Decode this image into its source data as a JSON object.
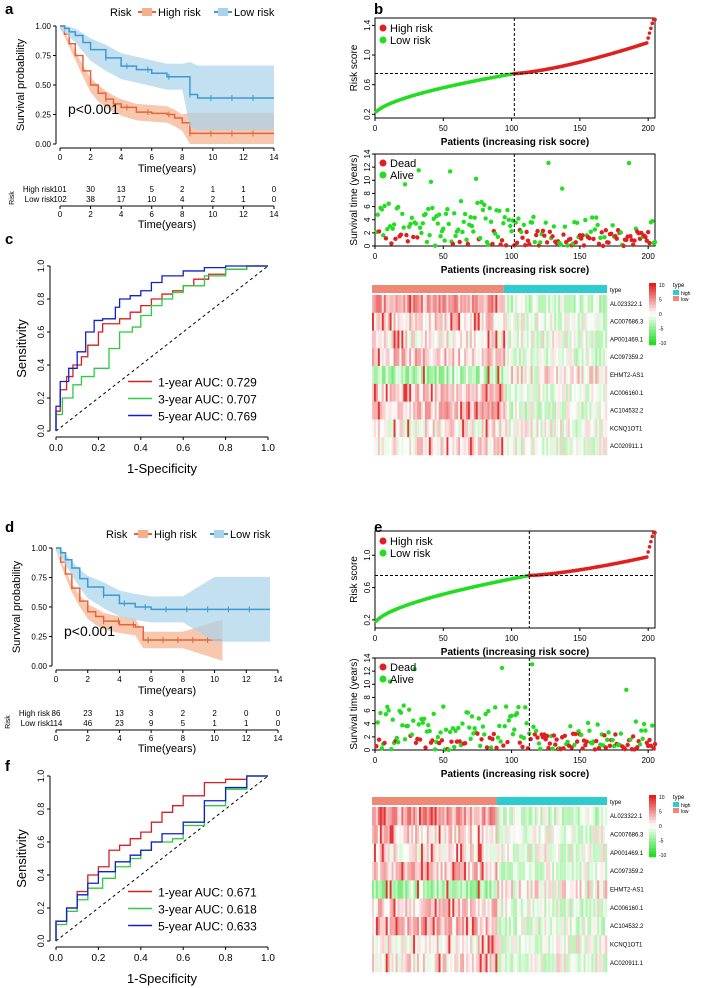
{
  "colors": {
    "high": "#E8633A",
    "low": "#3C9AD2",
    "high_band": "#F4B08A",
    "low_band": "#A9D3EA",
    "red": "#E02020",
    "green": "#22DD22",
    "roc1": "#D42020",
    "roc3": "#2ECC40",
    "roc5": "#1020C8",
    "hm_high": "#E22020",
    "hm_mid": "#FFFFFF",
    "hm_low": "#22DD22",
    "bar_high": "#2ECCD0",
    "bar_low": "#F08878"
  },
  "panels": {
    "a": {
      "label": "a",
      "legend_title": "Risk",
      "legend_high": "High risk",
      "legend_low": "Low risk",
      "ylabel": "Survival probability",
      "xlabel": "Time(years)",
      "pvalue": "p<0.001",
      "yticks": [
        "0.00",
        "0.25",
        "0.50",
        "0.75",
        "1.00"
      ],
      "xticks": [
        "0",
        "2",
        "4",
        "6",
        "8",
        "10",
        "12",
        "14"
      ],
      "risk_table": {
        "title": "Risk",
        "row_high_label": "High risk",
        "row_low_label": "Low risk",
        "high": [
          "101",
          "30",
          "13",
          "5",
          "2",
          "1",
          "1",
          "0"
        ],
        "low": [
          "102",
          "38",
          "17",
          "10",
          "4",
          "2",
          "1",
          "0"
        ],
        "xlabel": "Time(years)",
        "xticks": [
          "0",
          "2",
          "4",
          "6",
          "8",
          "10",
          "12",
          "14"
        ]
      }
    },
    "b": {
      "label": "b",
      "score": {
        "ylabel": "Risk score",
        "xlabel": "Patients (increasing risk socre)",
        "legend_high": "High risk",
        "legend_low": "Low risk",
        "yticks": [
          "0.2",
          "0.6",
          "1.0",
          "1.4"
        ],
        "xticks": [
          "0",
          "50",
          "100",
          "150",
          "200"
        ]
      },
      "surv": {
        "ylabel": "Survival time (years)",
        "xlabel": "Patients (increasing risk socre)",
        "legend_dead": "Dead",
        "legend_alive": "Alive",
        "yticks": [
          "0",
          "2",
          "4",
          "6",
          "8",
          "10",
          "12",
          "14"
        ],
        "xticks": [
          "0",
          "50",
          "100",
          "150",
          "200"
        ]
      },
      "heat": {
        "genes": [
          "AL023322.1",
          "AC007686.3",
          "AP001469.1",
          "AC097359.2",
          "EHMT2-AS1",
          "AC006160.1",
          "AC104532.2",
          "KCNQ1OT1",
          "AC020911.1"
        ],
        "legend_title": "type",
        "type_high": "high",
        "type_low": "low",
        "scale": [
          "10",
          "5",
          "0",
          "-5",
          "-10"
        ],
        "top_label": "type"
      }
    },
    "c": {
      "label": "c",
      "ylabel": "Sensitivity",
      "xlabel": "1-Specificity",
      "ticks": [
        "0.0",
        "0.2",
        "0.4",
        "0.6",
        "0.8",
        "1.0"
      ],
      "legend": [
        "1-year AUC: 0.729",
        "3-year AUC: 0.707",
        "5-year AUC: 0.769"
      ]
    },
    "d": {
      "label": "d",
      "legend_title": "Risk",
      "legend_high": "High risk",
      "legend_low": "Low risk",
      "ylabel": "Survival probability",
      "xlabel": "Time(years)",
      "pvalue": "p<0.001",
      "yticks": [
        "0.00",
        "0.25",
        "0.50",
        "0.75",
        "1.00"
      ],
      "xticks": [
        "0",
        "2",
        "4",
        "6",
        "8",
        "10",
        "12",
        "14"
      ],
      "risk_table": {
        "title": "Risk",
        "row_high_label": "High risk",
        "row_low_label": "Low risk",
        "high": [
          "86",
          "23",
          "13",
          "3",
          "2",
          "2",
          "0",
          "0"
        ],
        "low": [
          "114",
          "46",
          "23",
          "9",
          "5",
          "1",
          "1",
          "0"
        ],
        "xlabel": "Time(years)",
        "xticks": [
          "0",
          "2",
          "4",
          "6",
          "8",
          "10",
          "12",
          "14"
        ]
      }
    },
    "e": {
      "label": "e",
      "score": {
        "ylabel": "Risk score",
        "xlabel": "Patients (increasing risk socre)",
        "legend_high": "High risk",
        "legend_low": "Low risk",
        "yticks": [
          "0.2",
          "0.6",
          "1.0"
        ],
        "xticks": [
          "0",
          "50",
          "100",
          "150",
          "200"
        ]
      },
      "surv": {
        "ylabel": "Survival time (years)",
        "xlabel": "Patients (increasing risk socre)",
        "legend_dead": "Dead",
        "legend_alive": "Alive",
        "yticks": [
          "0",
          "2",
          "4",
          "6",
          "8",
          "10",
          "12",
          "14"
        ],
        "xticks": [
          "0",
          "50",
          "100",
          "150",
          "200"
        ]
      },
      "heat": {
        "genes": [
          "AL023322.1",
          "AC007686.3",
          "AP001469.1",
          "AC097359.2",
          "EHMT2-AS1",
          "AC006160.1",
          "AC104532.2",
          "KCNQ1OT1",
          "AC020911.1"
        ],
        "legend_title": "type",
        "type_high": "high",
        "type_low": "low",
        "scale": [
          "10",
          "5",
          "0",
          "-5",
          "-10"
        ],
        "top_label": "type"
      }
    },
    "f": {
      "label": "f",
      "ylabel": "Sensitivity",
      "xlabel": "1-Specificity",
      "ticks": [
        "0.0",
        "0.2",
        "0.4",
        "0.6",
        "0.8",
        "1.0"
      ],
      "legend": [
        "1-year AUC: 0.671",
        "3-year AUC: 0.618",
        "5-year AUC: 0.633"
      ]
    }
  },
  "chart_data": [
    {
      "type": "line",
      "id": "a-km",
      "title": "",
      "xlabel": "Time(years)",
      "ylabel": "Survival probability",
      "xlim": [
        0,
        14
      ],
      "ylim": [
        0,
        1
      ],
      "series": [
        {
          "name": "High risk",
          "x": [
            0,
            0.3,
            0.6,
            1,
            1.5,
            2,
            2.5,
            3,
            3.5,
            4,
            5,
            6,
            7,
            7.5,
            8,
            8.5,
            14
          ],
          "y": [
            1,
            0.93,
            0.85,
            0.75,
            0.62,
            0.5,
            0.43,
            0.38,
            0.34,
            0.31,
            0.27,
            0.26,
            0.25,
            0.22,
            0.18,
            0.09,
            0.09
          ]
        },
        {
          "name": "Low risk",
          "x": [
            0,
            0.3,
            0.6,
            1,
            1.5,
            2,
            3,
            4,
            5,
            6,
            7,
            8,
            8.5,
            9,
            14
          ],
          "y": [
            1,
            0.98,
            0.95,
            0.92,
            0.86,
            0.8,
            0.73,
            0.66,
            0.63,
            0.6,
            0.57,
            0.57,
            0.42,
            0.39,
            0.39
          ]
        }
      ]
    },
    {
      "type": "scatter",
      "id": "b-riskscore",
      "xlabel": "Patients (increasing risk socre)",
      "ylabel": "Risk score",
      "xlim": [
        0,
        205
      ],
      "ylim": [
        0.15,
        1.5
      ],
      "cutoff": 102,
      "threshold": 0.75
    },
    {
      "type": "scatter",
      "id": "b-survival",
      "xlabel": "Patients (increasing risk socre)",
      "ylabel": "Survival time (years)",
      "xlim": [
        0,
        205
      ],
      "ylim": [
        0,
        14
      ],
      "cutoff": 102
    },
    {
      "type": "heatmap",
      "id": "b-heat",
      "rows": [
        "AL023322.1",
        "AC007686.3",
        "AP001469.1",
        "AC097359.2",
        "EHMT2-AS1",
        "AC006160.1",
        "AC104532.2",
        "KCNQ1OT1",
        "AC020911.1"
      ]
    },
    {
      "type": "line",
      "id": "c-roc",
      "xlabel": "1-Specificity",
      "ylabel": "Sensitivity",
      "xlim": [
        0,
        1
      ],
      "ylim": [
        0,
        1
      ],
      "series": [
        {
          "name": "1-year AUC: 0.729",
          "x": [
            0,
            0.02,
            0.05,
            0.08,
            0.12,
            0.15,
            0.2,
            0.22,
            0.3,
            0.35,
            0.4,
            0.45,
            0.5,
            0.55,
            0.6,
            0.65,
            0.72,
            0.8,
            0.9,
            1
          ],
          "y": [
            0,
            0.12,
            0.25,
            0.33,
            0.4,
            0.45,
            0.52,
            0.6,
            0.65,
            0.68,
            0.72,
            0.76,
            0.8,
            0.83,
            0.85,
            0.88,
            0.92,
            0.95,
            0.98,
            1
          ]
        },
        {
          "name": "3-year AUC: 0.707",
          "x": [
            0,
            0.03,
            0.08,
            0.12,
            0.18,
            0.25,
            0.3,
            0.36,
            0.4,
            0.45,
            0.5,
            0.55,
            0.6,
            0.7,
            0.8,
            0.9,
            1
          ],
          "y": [
            0,
            0.1,
            0.2,
            0.28,
            0.33,
            0.38,
            0.5,
            0.6,
            0.63,
            0.7,
            0.76,
            0.8,
            0.84,
            0.88,
            0.94,
            0.98,
            1
          ]
        },
        {
          "name": "5-year AUC: 0.769",
          "x": [
            0,
            0.02,
            0.06,
            0.1,
            0.14,
            0.18,
            0.22,
            0.28,
            0.3,
            0.35,
            0.4,
            0.45,
            0.5,
            0.6,
            0.7,
            0.8,
            0.9,
            1
          ],
          "y": [
            0,
            0.15,
            0.3,
            0.38,
            0.48,
            0.6,
            0.67,
            0.68,
            0.75,
            0.8,
            0.82,
            0.85,
            0.9,
            0.94,
            0.97,
            0.99,
            1,
            1
          ]
        }
      ]
    },
    {
      "type": "line",
      "id": "d-km",
      "xlabel": "Time(years)",
      "ylabel": "Survival probability",
      "xlim": [
        0,
        14
      ],
      "ylim": [
        0,
        1
      ],
      "series": [
        {
          "name": "High risk",
          "x": [
            0,
            0.3,
            0.6,
            1,
            1.5,
            2,
            2.5,
            3,
            4,
            5,
            5.5,
            6,
            8,
            10.5
          ],
          "y": [
            1,
            0.88,
            0.78,
            0.66,
            0.55,
            0.46,
            0.42,
            0.38,
            0.35,
            0.33,
            0.22,
            0.22,
            0.22,
            0.22
          ]
        },
        {
          "name": "Low risk",
          "x": [
            0,
            0.3,
            0.6,
            1,
            1.5,
            2,
            3,
            4,
            5,
            6,
            8,
            10,
            13.5
          ],
          "y": [
            1,
            0.96,
            0.9,
            0.83,
            0.74,
            0.67,
            0.6,
            0.53,
            0.5,
            0.48,
            0.48,
            0.48,
            0.48
          ]
        }
      ]
    },
    {
      "type": "scatter",
      "id": "e-riskscore",
      "xlabel": "Patients (increasing risk socre)",
      "ylabel": "Risk score",
      "xlim": [
        0,
        205
      ],
      "ylim": [
        0.1,
        1.3
      ],
      "cutoff": 113,
      "threshold": 0.75
    },
    {
      "type": "scatter",
      "id": "e-survival",
      "xlabel": "Patients (increasing risk socre)",
      "ylabel": "Survival time (years)",
      "xlim": [
        0,
        205
      ],
      "ylim": [
        0,
        14
      ],
      "cutoff": 113
    },
    {
      "type": "heatmap",
      "id": "e-heat",
      "rows": [
        "AL023322.1",
        "AC007686.3",
        "AP001469.1",
        "AC097359.2",
        "EHMT2-AS1",
        "AC006160.1",
        "AC104532.2",
        "KCNQ1OT1",
        "AC020911.1"
      ]
    },
    {
      "type": "line",
      "id": "f-roc",
      "xlabel": "1-Specificity",
      "ylabel": "Sensitivity",
      "xlim": [
        0,
        1
      ],
      "ylim": [
        0,
        1
      ],
      "series": [
        {
          "name": "1-year AUC: 0.671",
          "x": [
            0,
            0.05,
            0.1,
            0.15,
            0.2,
            0.25,
            0.3,
            0.35,
            0.4,
            0.45,
            0.5,
            0.55,
            0.6,
            0.7,
            0.8,
            0.9,
            1
          ],
          "y": [
            0,
            0.12,
            0.2,
            0.3,
            0.4,
            0.45,
            0.55,
            0.58,
            0.62,
            0.66,
            0.72,
            0.78,
            0.82,
            0.88,
            0.96,
            0.98,
            1
          ]
        },
        {
          "name": "3-year AUC: 0.618",
          "x": [
            0,
            0.05,
            0.1,
            0.15,
            0.22,
            0.28,
            0.35,
            0.4,
            0.45,
            0.55,
            0.6,
            0.7,
            0.8,
            0.9,
            1
          ],
          "y": [
            0,
            0.1,
            0.18,
            0.25,
            0.32,
            0.38,
            0.45,
            0.5,
            0.55,
            0.6,
            0.62,
            0.7,
            0.82,
            0.92,
            1
          ]
        },
        {
          "name": "5-year AUC: 0.633",
          "x": [
            0,
            0.05,
            0.1,
            0.15,
            0.2,
            0.28,
            0.35,
            0.4,
            0.45,
            0.5,
            0.6,
            0.7,
            0.8,
            0.9,
            1
          ],
          "y": [
            0,
            0.12,
            0.2,
            0.28,
            0.35,
            0.42,
            0.48,
            0.52,
            0.55,
            0.6,
            0.65,
            0.72,
            0.85,
            0.93,
            1
          ]
        }
      ]
    }
  ]
}
